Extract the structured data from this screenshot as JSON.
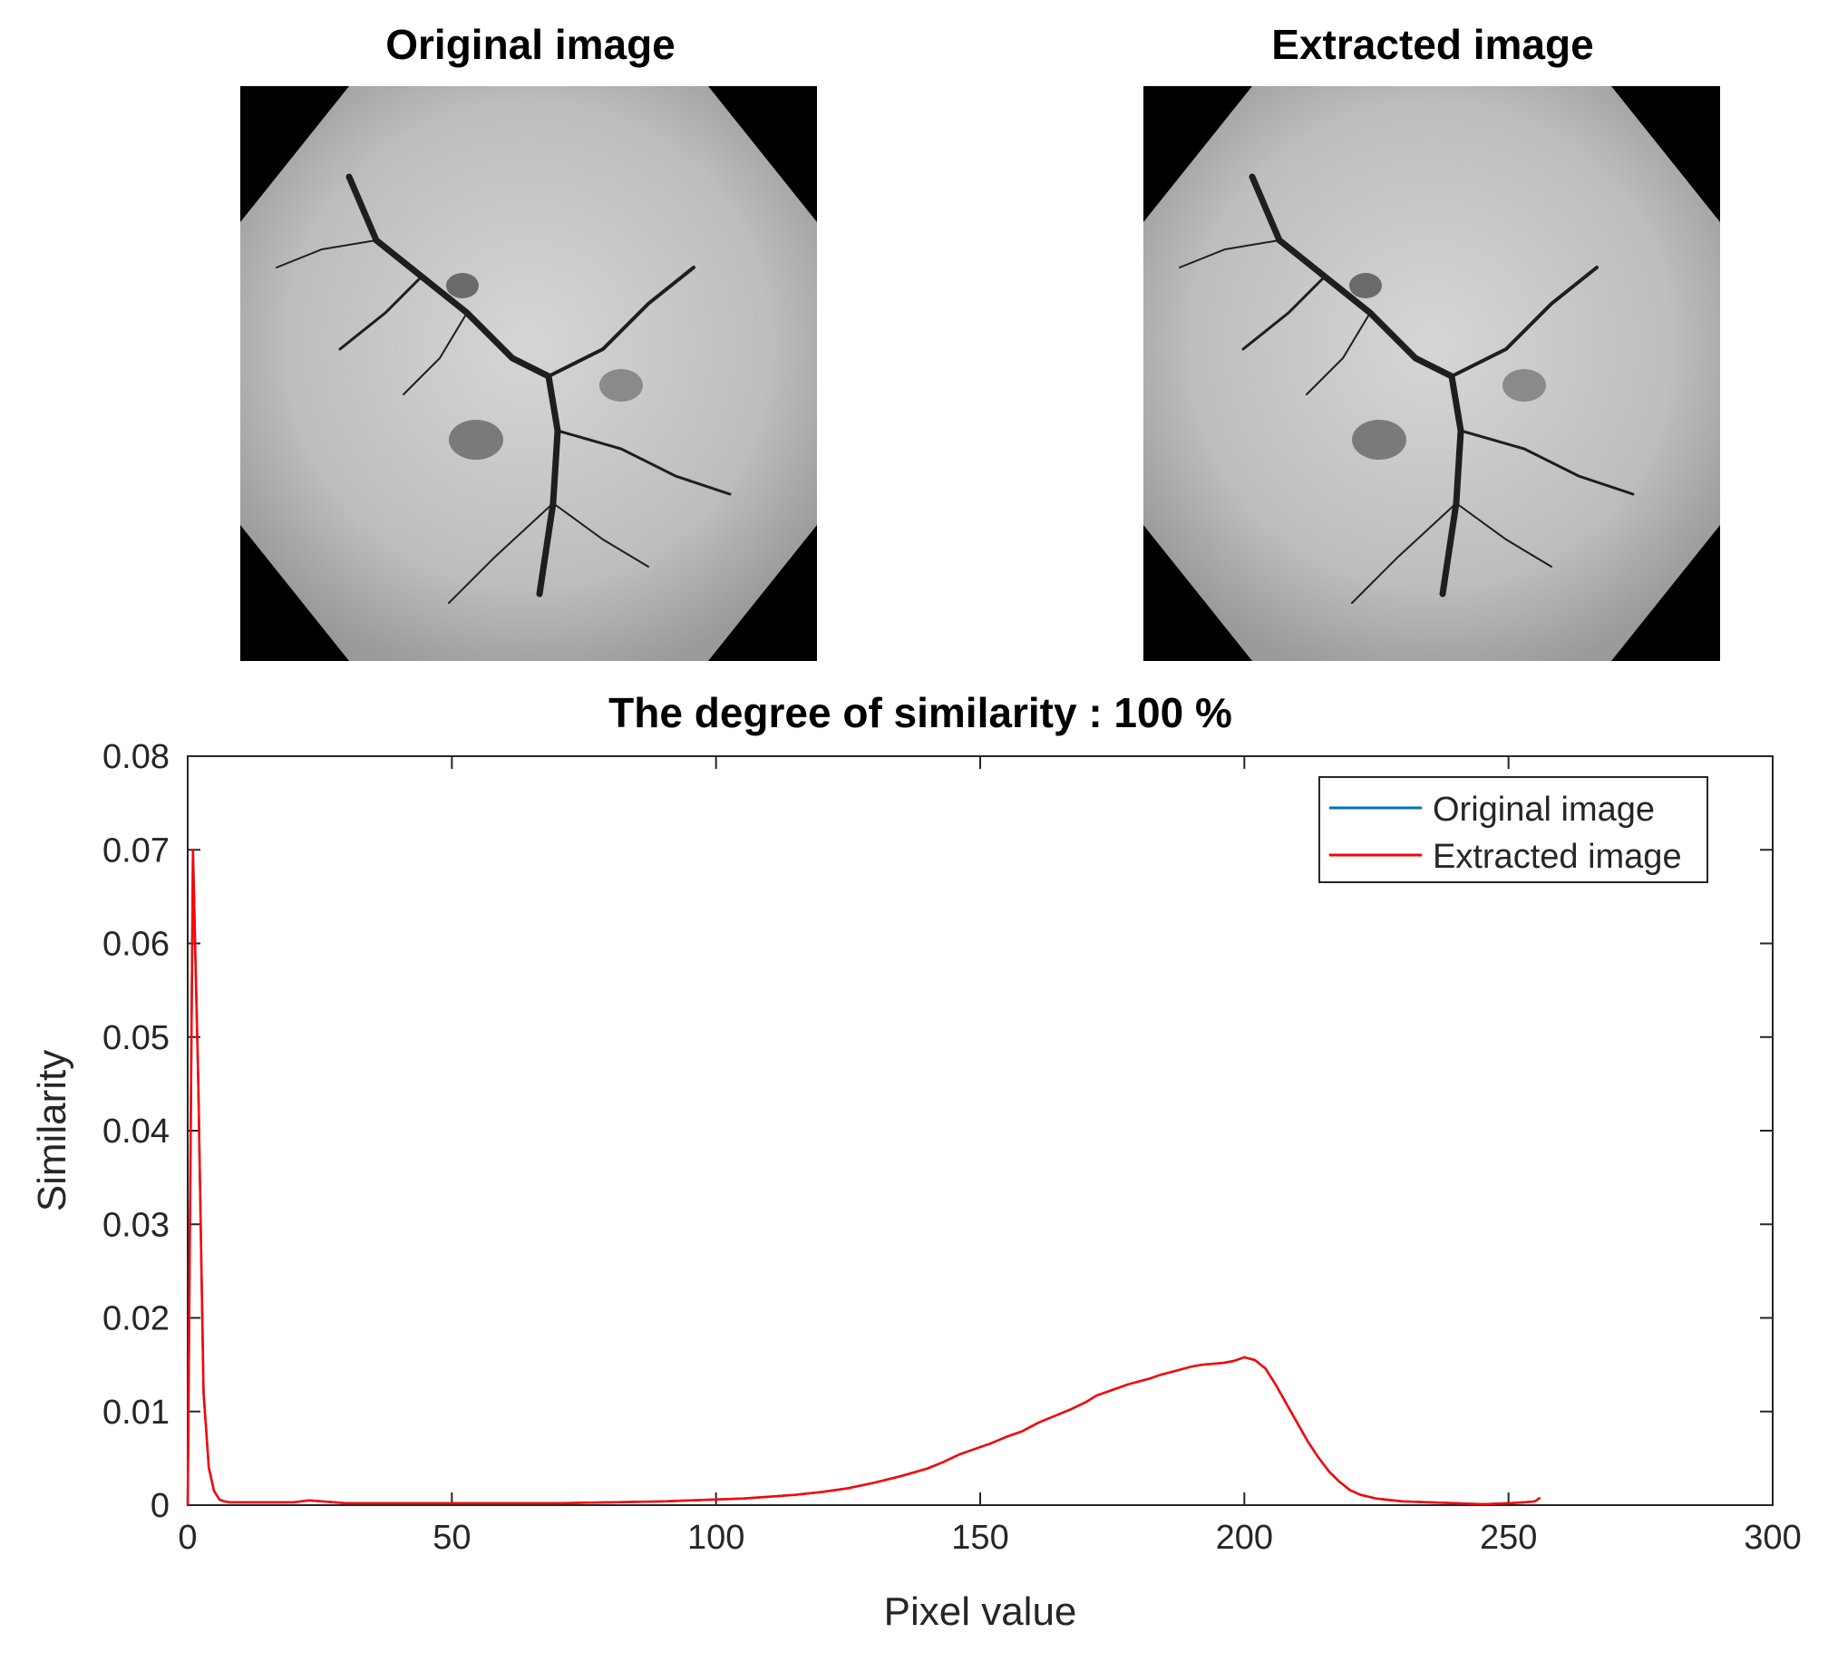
{
  "images": {
    "original_title": "Original image",
    "extracted_title": "Extracted image"
  },
  "chart_data": {
    "type": "line",
    "title": "The degree of similarity : 100 %",
    "xlabel": "Pixel value",
    "ylabel": "Similarity",
    "xlim": [
      0,
      300
    ],
    "ylim": [
      0,
      0.08
    ],
    "xticks": [
      0,
      50,
      100,
      150,
      200,
      250,
      300
    ],
    "xtick_labels": [
      "0",
      "50",
      "100",
      "150",
      "200",
      "250",
      "300"
    ],
    "yticks": [
      0,
      0.01,
      0.02,
      0.03,
      0.04,
      0.05,
      0.06,
      0.07,
      0.08
    ],
    "ytick_labels": [
      "0",
      "0.01",
      "0.02",
      "0.03",
      "0.04",
      "0.05",
      "0.06",
      "0.07",
      "0.08"
    ],
    "grid": false,
    "legend_position": "top-right",
    "series": [
      {
        "name": "Original image",
        "color": "#0072BD",
        "x": [
          0,
          1,
          2,
          3,
          4,
          5,
          6,
          7,
          8,
          10,
          15,
          20,
          23,
          30,
          40,
          50,
          60,
          70,
          80,
          90,
          95,
          100,
          105,
          110,
          115,
          120,
          125,
          130,
          135,
          140,
          143,
          146,
          149,
          152,
          155,
          158,
          161,
          164,
          167,
          170,
          172,
          174,
          176,
          178,
          180,
          182,
          184,
          186,
          188,
          190,
          192,
          194,
          196,
          198,
          200,
          202,
          204,
          206,
          208,
          210,
          212,
          214,
          216,
          218,
          220,
          222,
          225,
          230,
          235,
          240,
          245,
          250,
          253,
          255,
          256
        ],
        "y": [
          0.0,
          0.07,
          0.045,
          0.012,
          0.004,
          0.0015,
          0.0006,
          0.0004,
          0.0003,
          0.0003,
          0.0003,
          0.0003,
          0.0005,
          0.0002,
          0.0002,
          0.0002,
          0.0002,
          0.0002,
          0.0003,
          0.0004,
          0.0005,
          0.0006,
          0.0007,
          0.0009,
          0.0011,
          0.0014,
          0.0018,
          0.0024,
          0.0031,
          0.0039,
          0.0046,
          0.0054,
          0.006,
          0.0066,
          0.0073,
          0.0079,
          0.0088,
          0.0095,
          0.0102,
          0.011,
          0.0117,
          0.0121,
          0.0125,
          0.0129,
          0.0132,
          0.0135,
          0.0139,
          0.0142,
          0.0145,
          0.0148,
          0.015,
          0.0151,
          0.0152,
          0.0154,
          0.0158,
          0.0155,
          0.0146,
          0.0128,
          0.0108,
          0.0088,
          0.0068,
          0.0051,
          0.0036,
          0.0025,
          0.0016,
          0.0011,
          0.0007,
          0.0004,
          0.0003,
          0.0002,
          0.0001,
          0.0002,
          0.0003,
          0.0004,
          0.0008
        ]
      },
      {
        "name": "Extracted image",
        "color": "#FF0000",
        "x": [
          0,
          1,
          2,
          3,
          4,
          5,
          6,
          7,
          8,
          10,
          15,
          20,
          23,
          30,
          40,
          50,
          60,
          70,
          80,
          90,
          95,
          100,
          105,
          110,
          115,
          120,
          125,
          130,
          135,
          140,
          143,
          146,
          149,
          152,
          155,
          158,
          161,
          164,
          167,
          170,
          172,
          174,
          176,
          178,
          180,
          182,
          184,
          186,
          188,
          190,
          192,
          194,
          196,
          198,
          200,
          202,
          204,
          206,
          208,
          210,
          212,
          214,
          216,
          218,
          220,
          222,
          225,
          230,
          235,
          240,
          245,
          250,
          253,
          255,
          256
        ],
        "y": [
          0.0,
          0.07,
          0.045,
          0.012,
          0.004,
          0.0015,
          0.0006,
          0.0004,
          0.0003,
          0.0003,
          0.0003,
          0.0003,
          0.0005,
          0.0002,
          0.0002,
          0.0002,
          0.0002,
          0.0002,
          0.0003,
          0.0004,
          0.0005,
          0.0006,
          0.0007,
          0.0009,
          0.0011,
          0.0014,
          0.0018,
          0.0024,
          0.0031,
          0.0039,
          0.0046,
          0.0054,
          0.006,
          0.0066,
          0.0073,
          0.0079,
          0.0088,
          0.0095,
          0.0102,
          0.011,
          0.0117,
          0.0121,
          0.0125,
          0.0129,
          0.0132,
          0.0135,
          0.0139,
          0.0142,
          0.0145,
          0.0148,
          0.015,
          0.0151,
          0.0152,
          0.0154,
          0.0158,
          0.0155,
          0.0146,
          0.0128,
          0.0108,
          0.0088,
          0.0068,
          0.0051,
          0.0036,
          0.0025,
          0.0016,
          0.0011,
          0.0007,
          0.0004,
          0.0003,
          0.0002,
          0.0001,
          0.0002,
          0.0003,
          0.0004,
          0.0008
        ]
      }
    ]
  }
}
